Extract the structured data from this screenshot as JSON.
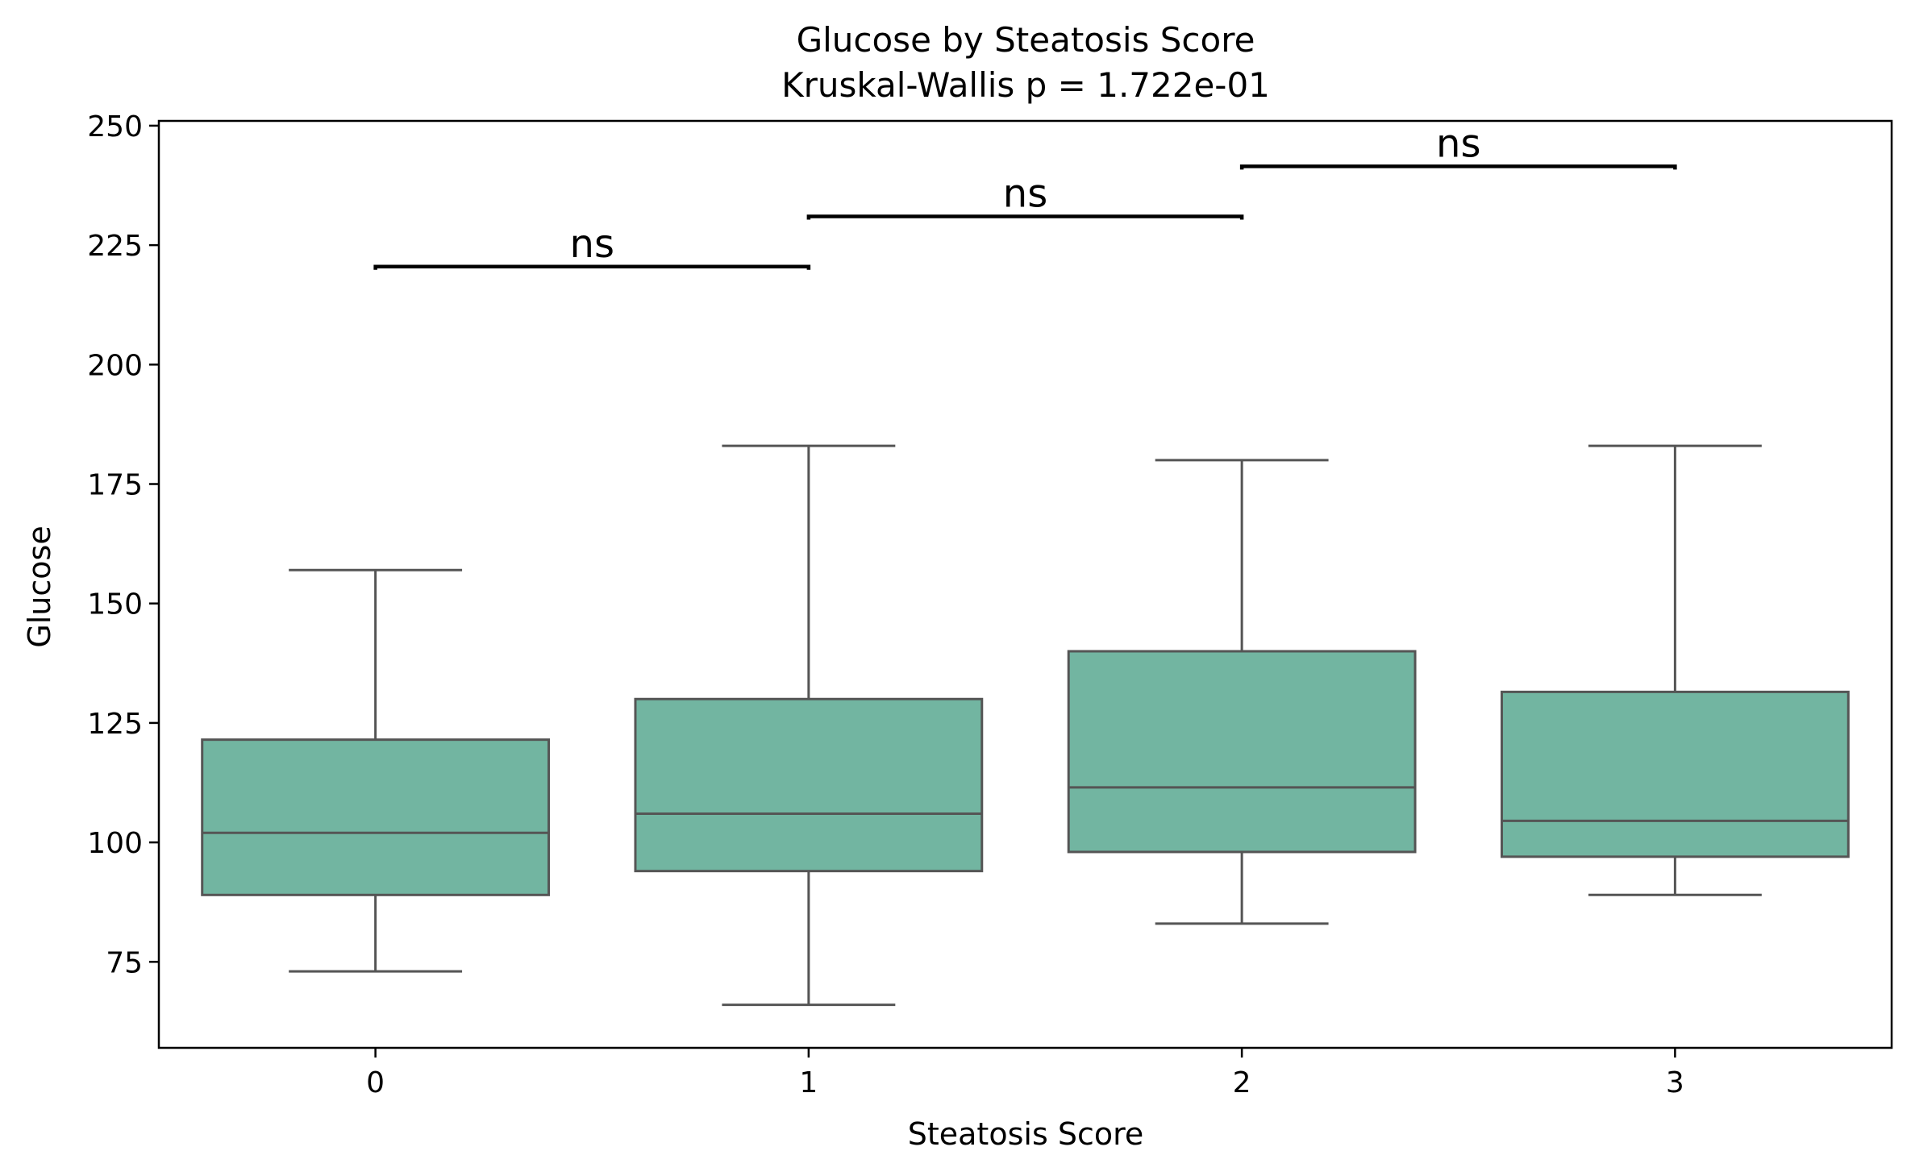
{
  "chart_data": {
    "type": "box",
    "title": "Glucose by Steatosis Score",
    "subtitle": "Kruskal-Wallis p = 1.722e-01",
    "xlabel": "Steatosis Score",
    "ylabel": "Glucose",
    "ylim": [
      57,
      251
    ],
    "yticks": [
      75,
      100,
      125,
      150,
      175,
      200,
      225,
      250
    ],
    "categories": [
      "0",
      "1",
      "2",
      "3"
    ],
    "box_color": "#72b5a1",
    "edge_color": "#555555",
    "boxes": [
      {
        "category": "0",
        "whisker_low": 73,
        "q1": 89,
        "median": 102,
        "q3": 121.5,
        "whisker_high": 157
      },
      {
        "category": "1",
        "whisker_low": 66,
        "q1": 94,
        "median": 106,
        "q3": 130,
        "whisker_high": 183
      },
      {
        "category": "2",
        "whisker_low": 83,
        "q1": 98,
        "median": 111.5,
        "q3": 140,
        "whisker_high": 180
      },
      {
        "category": "3",
        "whisker_low": 89,
        "q1": 97,
        "median": 104.5,
        "q3": 131.5,
        "whisker_high": 183
      }
    ],
    "annotations": [
      {
        "from": "0",
        "to": "1",
        "y": 220.5,
        "text": "ns"
      },
      {
        "from": "1",
        "to": "2",
        "y": 231,
        "text": "ns"
      },
      {
        "from": "2",
        "to": "3",
        "y": 241.5,
        "text": "ns"
      }
    ]
  }
}
